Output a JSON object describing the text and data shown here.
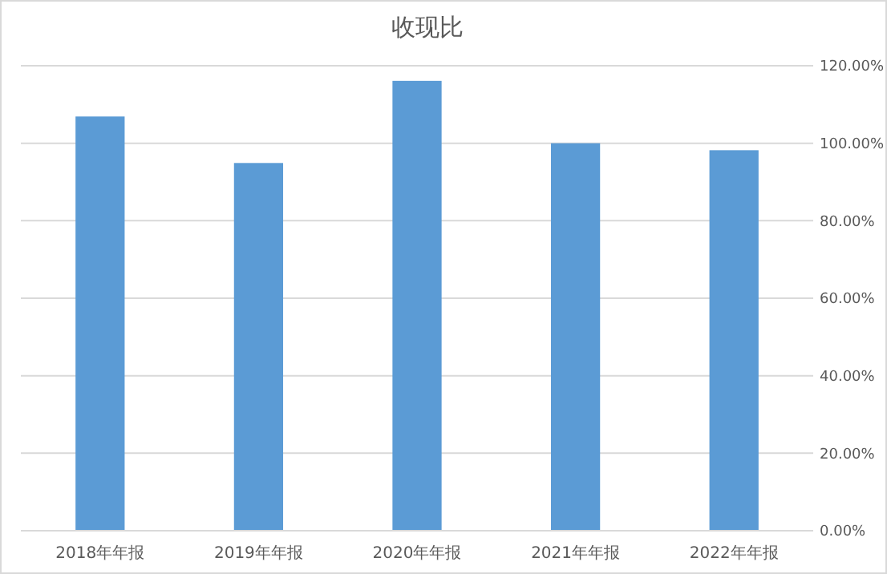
{
  "chart_data": {
    "type": "bar",
    "title": "收现比",
    "categories": [
      "2018年年报",
      "2019年年报",
      "2020年年报",
      "2021年年报",
      "2022年年报"
    ],
    "values": [
      106.9,
      94.9,
      116.1,
      100.0,
      98.2
    ],
    "color": "#5b9bd5",
    "ylim": [
      0,
      120
    ],
    "yticks": [
      {
        "value": 0,
        "label": "0.00%"
      },
      {
        "value": 20,
        "label": "20.00%"
      },
      {
        "value": 40,
        "label": "40.00%"
      },
      {
        "value": 60,
        "label": "60.00%"
      },
      {
        "value": 80,
        "label": "80.00%"
      },
      {
        "value": 100,
        "label": "100.00%"
      },
      {
        "value": 120,
        "label": "120.00%"
      }
    ],
    "grid": "y"
  }
}
